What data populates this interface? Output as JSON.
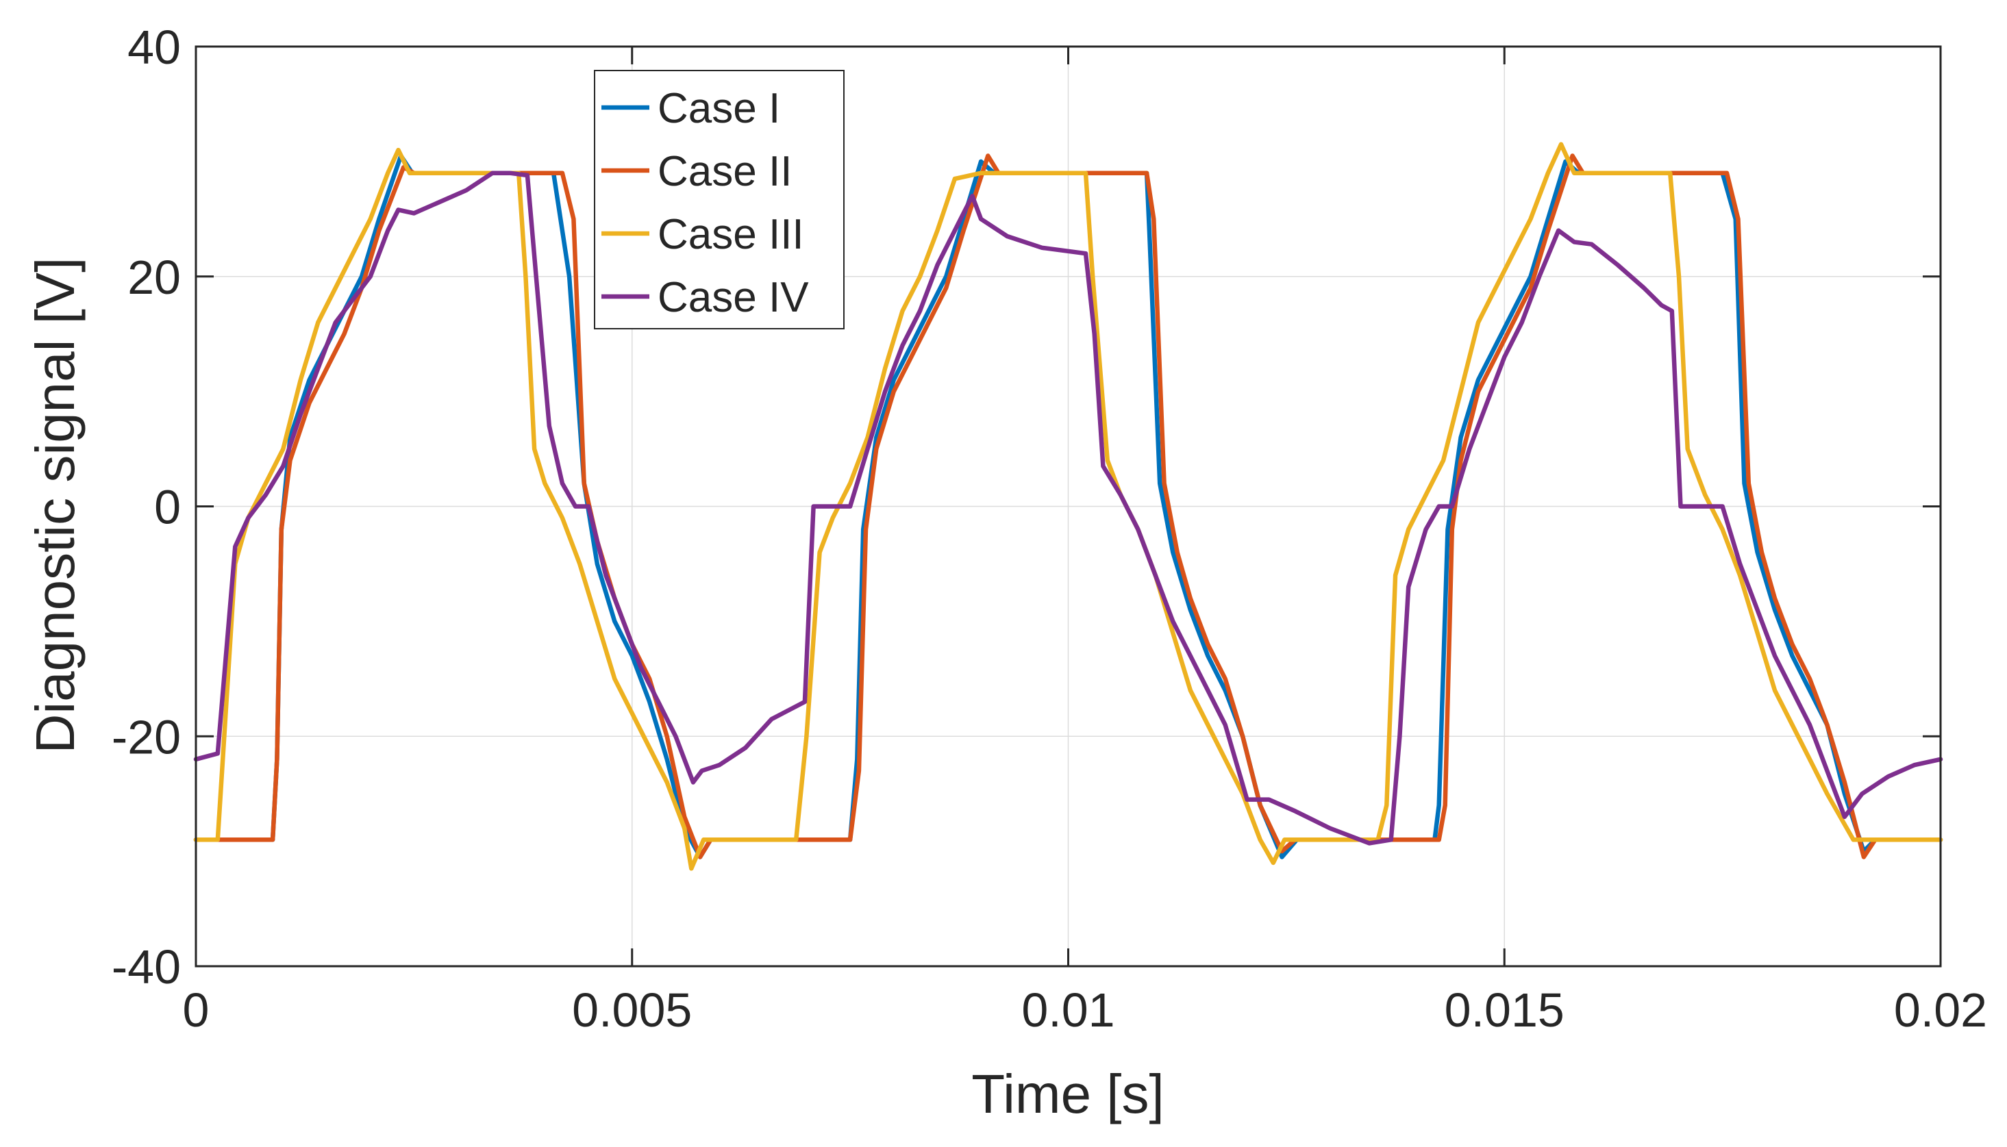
{
  "chart_data": {
    "type": "line",
    "title": "",
    "xlabel": "Time  [s]",
    "ylabel": "Diagnostic signal [V]",
    "xlim": [
      0,
      0.02
    ],
    "ylim": [
      -40,
      40
    ],
    "grid": true,
    "legend_position": "top-left",
    "x_ticks": [
      0,
      0.005,
      0.01,
      0.015,
      0.02
    ],
    "x_tick_labels": [
      "0",
      "0.005",
      "0.01",
      "0.015",
      "0.02"
    ],
    "y_ticks": [
      -40,
      -20,
      0,
      20,
      40
    ],
    "y_tick_labels": [
      "-40",
      "-20",
      "0",
      "20",
      "40"
    ],
    "series": [
      {
        "name": "Case I",
        "color": "#0072BD",
        "points": [
          [
            0,
            -29
          ],
          [
            0.00088,
            -29
          ],
          [
            0.00093,
            -22
          ],
          [
            0.00098,
            -2
          ],
          [
            0.00108,
            6
          ],
          [
            0.0013,
            11
          ],
          [
            0.0015,
            14
          ],
          [
            0.0017,
            17
          ],
          [
            0.0019,
            20
          ],
          [
            0.0021,
            25
          ],
          [
            0.00235,
            30.5
          ],
          [
            0.00248,
            29
          ],
          [
            0.0026,
            29
          ],
          [
            0.0041,
            29
          ],
          [
            0.00428,
            20
          ],
          [
            0.00445,
            2
          ],
          [
            0.0046,
            -5
          ],
          [
            0.0048,
            -10
          ],
          [
            0.005,
            -13
          ],
          [
            0.0052,
            -17
          ],
          [
            0.0054,
            -22
          ],
          [
            0.0056,
            -28
          ],
          [
            0.00578,
            -30.5
          ],
          [
            0.0059,
            -29
          ],
          [
            0.0075,
            -29
          ],
          [
            0.00758,
            -22
          ],
          [
            0.00765,
            -2
          ],
          [
            0.0078,
            6
          ],
          [
            0.008,
            11
          ],
          [
            0.0082,
            14
          ],
          [
            0.0084,
            17
          ],
          [
            0.0086,
            20
          ],
          [
            0.0088,
            25
          ],
          [
            0.009,
            30
          ],
          [
            0.00915,
            29
          ],
          [
            0.0109,
            29
          ],
          [
            0.01093,
            24
          ],
          [
            0.01105,
            2
          ],
          [
            0.0112,
            -4
          ],
          [
            0.0114,
            -9
          ],
          [
            0.0116,
            -13
          ],
          [
            0.0118,
            -16
          ],
          [
            0.012,
            -20
          ],
          [
            0.0122,
            -26
          ],
          [
            0.01245,
            -30.5
          ],
          [
            0.01262,
            -29
          ],
          [
            0.0142,
            -29
          ],
          [
            0.01425,
            -26
          ],
          [
            0.01435,
            -2
          ],
          [
            0.0145,
            6
          ],
          [
            0.0147,
            11
          ],
          [
            0.0149,
            14
          ],
          [
            0.0151,
            17
          ],
          [
            0.0153,
            20
          ],
          [
            0.0155,
            25
          ],
          [
            0.0157,
            30
          ],
          [
            0.01585,
            29
          ],
          [
            0.0175,
            29
          ],
          [
            0.01765,
            25
          ],
          [
            0.01775,
            2
          ],
          [
            0.0179,
            -4
          ],
          [
            0.0181,
            -9
          ],
          [
            0.0183,
            -13
          ],
          [
            0.0185,
            -16
          ],
          [
            0.0187,
            -19
          ],
          [
            0.0189,
            -25
          ],
          [
            0.01912,
            -30
          ],
          [
            0.01925,
            -29
          ],
          [
            0.02,
            -29
          ]
        ]
      },
      {
        "name": "Case II",
        "color": "#D95319",
        "points": [
          [
            0,
            -29
          ],
          [
            0.00088,
            -29
          ],
          [
            0.00093,
            -22
          ],
          [
            0.00098,
            -2
          ],
          [
            0.00108,
            4
          ],
          [
            0.0013,
            9
          ],
          [
            0.0015,
            12
          ],
          [
            0.0017,
            15
          ],
          [
            0.0019,
            19
          ],
          [
            0.0021,
            24
          ],
          [
            0.00238,
            29.5
          ],
          [
            0.0025,
            29
          ],
          [
            0.0042,
            29
          ],
          [
            0.00433,
            25
          ],
          [
            0.00445,
            2
          ],
          [
            0.0046,
            -3
          ],
          [
            0.0048,
            -8
          ],
          [
            0.005,
            -12
          ],
          [
            0.0052,
            -15
          ],
          [
            0.0054,
            -20
          ],
          [
            0.0056,
            -27
          ],
          [
            0.00578,
            -30.5
          ],
          [
            0.0059,
            -29
          ],
          [
            0.0075,
            -29
          ],
          [
            0.0076,
            -23
          ],
          [
            0.00768,
            -2
          ],
          [
            0.0078,
            5
          ],
          [
            0.008,
            10
          ],
          [
            0.0082,
            13
          ],
          [
            0.0084,
            16
          ],
          [
            0.0086,
            19
          ],
          [
            0.0088,
            24
          ],
          [
            0.00908,
            30.5
          ],
          [
            0.0092,
            29
          ],
          [
            0.0109,
            29
          ],
          [
            0.01098,
            25
          ],
          [
            0.0111,
            2
          ],
          [
            0.01125,
            -4
          ],
          [
            0.0114,
            -8
          ],
          [
            0.0116,
            -12
          ],
          [
            0.0118,
            -15
          ],
          [
            0.012,
            -20
          ],
          [
            0.0122,
            -26
          ],
          [
            0.01245,
            -30
          ],
          [
            0.0126,
            -29
          ],
          [
            0.01425,
            -29
          ],
          [
            0.01432,
            -26
          ],
          [
            0.0144,
            -2
          ],
          [
            0.0145,
            4
          ],
          [
            0.0147,
            10
          ],
          [
            0.0149,
            13
          ],
          [
            0.0151,
            16
          ],
          [
            0.0153,
            19
          ],
          [
            0.0155,
            24
          ],
          [
            0.01578,
            30.5
          ],
          [
            0.0159,
            29
          ],
          [
            0.01755,
            29
          ],
          [
            0.01768,
            25
          ],
          [
            0.0178,
            2
          ],
          [
            0.01795,
            -4
          ],
          [
            0.0181,
            -8
          ],
          [
            0.0183,
            -12
          ],
          [
            0.0185,
            -15
          ],
          [
            0.0187,
            -19
          ],
          [
            0.0189,
            -24
          ],
          [
            0.01912,
            -30.5
          ],
          [
            0.01925,
            -29
          ],
          [
            0.02,
            -29
          ]
        ]
      },
      {
        "name": "Case III",
        "color": "#EDB120",
        "points": [
          [
            0,
            -29
          ],
          [
            0.00025,
            -29
          ],
          [
            0.00045,
            -5
          ],
          [
            0.0006,
            -1
          ],
          [
            0.0008,
            2
          ],
          [
            0.001,
            5
          ],
          [
            0.0012,
            11
          ],
          [
            0.0014,
            16
          ],
          [
            0.0016,
            19
          ],
          [
            0.0018,
            22
          ],
          [
            0.002,
            25
          ],
          [
            0.0022,
            29
          ],
          [
            0.00232,
            31
          ],
          [
            0.00245,
            29
          ],
          [
            0.0037,
            29
          ],
          [
            0.00378,
            20
          ],
          [
            0.00388,
            5
          ],
          [
            0.004,
            2
          ],
          [
            0.0042,
            -1
          ],
          [
            0.0044,
            -5
          ],
          [
            0.0046,
            -10
          ],
          [
            0.0048,
            -15
          ],
          [
            0.005,
            -18
          ],
          [
            0.0052,
            -21
          ],
          [
            0.0054,
            -24
          ],
          [
            0.0056,
            -28
          ],
          [
            0.00568,
            -31.5
          ],
          [
            0.00582,
            -29
          ],
          [
            0.00688,
            -29
          ],
          [
            0.007,
            -20
          ],
          [
            0.00715,
            -4
          ],
          [
            0.0073,
            -1
          ],
          [
            0.0075,
            2
          ],
          [
            0.0077,
            6
          ],
          [
            0.0079,
            12
          ],
          [
            0.0081,
            17
          ],
          [
            0.0083,
            20
          ],
          [
            0.0085,
            24
          ],
          [
            0.0087,
            28.5
          ],
          [
            0.009,
            29
          ],
          [
            0.0102,
            29
          ],
          [
            0.01028,
            20
          ],
          [
            0.01045,
            4
          ],
          [
            0.0106,
            1
          ],
          [
            0.0108,
            -2
          ],
          [
            0.011,
            -6
          ],
          [
            0.0112,
            -11
          ],
          [
            0.0114,
            -16
          ],
          [
            0.0116,
            -19
          ],
          [
            0.0118,
            -22
          ],
          [
            0.012,
            -25
          ],
          [
            0.0122,
            -29
          ],
          [
            0.01235,
            -31
          ],
          [
            0.01248,
            -29
          ],
          [
            0.01355,
            -29
          ],
          [
            0.01365,
            -26
          ],
          [
            0.01375,
            -6
          ],
          [
            0.0139,
            -2
          ],
          [
            0.0141,
            1
          ],
          [
            0.0143,
            4
          ],
          [
            0.0145,
            10
          ],
          [
            0.0147,
            16
          ],
          [
            0.0149,
            19
          ],
          [
            0.0151,
            22
          ],
          [
            0.0153,
            25
          ],
          [
            0.0155,
            29
          ],
          [
            0.01565,
            31.5
          ],
          [
            0.0158,
            29
          ],
          [
            0.0169,
            29
          ],
          [
            0.017,
            20
          ],
          [
            0.0171,
            5
          ],
          [
            0.0173,
            1
          ],
          [
            0.0175,
            -2
          ],
          [
            0.0177,
            -6
          ],
          [
            0.0179,
            -11
          ],
          [
            0.0181,
            -16
          ],
          [
            0.0183,
            -19
          ],
          [
            0.0185,
            -22
          ],
          [
            0.0187,
            -25
          ],
          [
            0.019,
            -29
          ],
          [
            0.0192,
            -29
          ],
          [
            0.02,
            -29
          ]
        ]
      },
      {
        "name": "Case IV",
        "color": "#7E2F8E",
        "points": [
          [
            0,
            -22
          ],
          [
            0.00025,
            -21.5
          ],
          [
            0.00045,
            -3.5
          ],
          [
            0.0006,
            -1
          ],
          [
            0.0008,
            1
          ],
          [
            0.001,
            3.5
          ],
          [
            0.0012,
            8
          ],
          [
            0.0014,
            12
          ],
          [
            0.0016,
            16
          ],
          [
            0.0018,
            18
          ],
          [
            0.002,
            20
          ],
          [
            0.0022,
            24
          ],
          [
            0.00232,
            25.8
          ],
          [
            0.0025,
            25.5
          ],
          [
            0.0028,
            26.5
          ],
          [
            0.0031,
            27.5
          ],
          [
            0.0034,
            29
          ],
          [
            0.0036,
            29
          ],
          [
            0.0038,
            28.8
          ],
          [
            0.0039,
            20
          ],
          [
            0.00405,
            7
          ],
          [
            0.0042,
            2
          ],
          [
            0.00435,
            0
          ],
          [
            0.0045,
            0
          ],
          [
            0.0047,
            -6
          ],
          [
            0.0049,
            -10
          ],
          [
            0.0051,
            -14
          ],
          [
            0.0053,
            -17
          ],
          [
            0.0055,
            -20
          ],
          [
            0.0057,
            -24
          ],
          [
            0.0058,
            -23
          ],
          [
            0.006,
            -22.5
          ],
          [
            0.0063,
            -21
          ],
          [
            0.0066,
            -18.5
          ],
          [
            0.00698,
            -17
          ],
          [
            0.00708,
            0
          ],
          [
            0.0075,
            0
          ],
          [
            0.0077,
            5
          ],
          [
            0.0079,
            10
          ],
          [
            0.0081,
            14
          ],
          [
            0.0083,
            17
          ],
          [
            0.0085,
            21
          ],
          [
            0.0087,
            24
          ],
          [
            0.0089,
            27
          ],
          [
            0.009,
            25
          ],
          [
            0.0093,
            23.5
          ],
          [
            0.0097,
            22.5
          ],
          [
            0.0102,
            22
          ],
          [
            0.0103,
            15
          ],
          [
            0.0104,
            3.5
          ],
          [
            0.0106,
            1
          ],
          [
            0.0108,
            -2
          ],
          [
            0.011,
            -6
          ],
          [
            0.0112,
            -10
          ],
          [
            0.0114,
            -13
          ],
          [
            0.0116,
            -16
          ],
          [
            0.0118,
            -19
          ],
          [
            0.01205,
            -25.5
          ],
          [
            0.0123,
            -25.5
          ],
          [
            0.0126,
            -26.5
          ],
          [
            0.013,
            -28
          ],
          [
            0.01345,
            -29.3
          ],
          [
            0.0137,
            -29
          ],
          [
            0.0138,
            -20
          ],
          [
            0.0139,
            -7
          ],
          [
            0.0141,
            -2
          ],
          [
            0.01425,
            0
          ],
          [
            0.0144,
            0
          ],
          [
            0.0146,
            5
          ],
          [
            0.0148,
            9
          ],
          [
            0.015,
            13
          ],
          [
            0.0152,
            16
          ],
          [
            0.0154,
            20
          ],
          [
            0.01562,
            24
          ],
          [
            0.0158,
            23
          ],
          [
            0.016,
            22.8
          ],
          [
            0.0163,
            21
          ],
          [
            0.0166,
            19
          ],
          [
            0.0168,
            17.5
          ],
          [
            0.01692,
            17
          ],
          [
            0.01702,
            0
          ],
          [
            0.0175,
            0
          ],
          [
            0.0177,
            -5
          ],
          [
            0.0179,
            -9
          ],
          [
            0.0181,
            -13
          ],
          [
            0.0183,
            -16
          ],
          [
            0.0185,
            -19
          ],
          [
            0.0187,
            -23
          ],
          [
            0.0189,
            -27
          ],
          [
            0.0191,
            -25
          ],
          [
            0.0194,
            -23.5
          ],
          [
            0.0197,
            -22.5
          ],
          [
            0.02,
            -22
          ]
        ]
      }
    ]
  }
}
